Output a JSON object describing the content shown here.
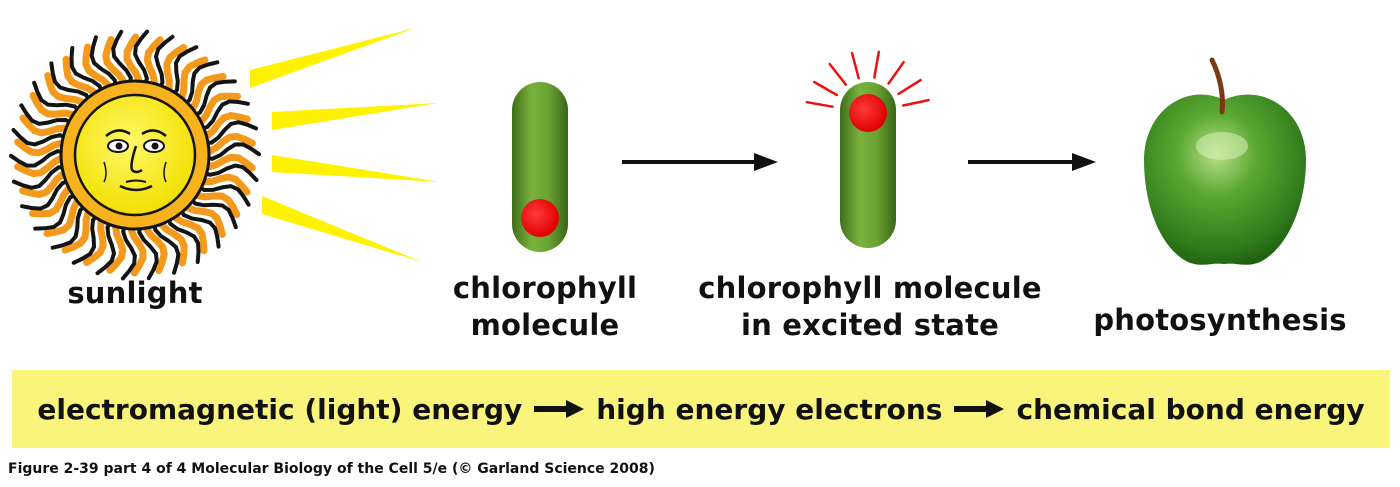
{
  "stages": {
    "sunlight": "sunlight",
    "chlorophyll_line1": "chlorophyll",
    "chlorophyll_line2": "molecule",
    "excited_line1": "chlorophyll molecule",
    "excited_line2": "in excited state",
    "photosynthesis": "photosynthesis"
  },
  "energy_band": {
    "step1": "electromagnetic (light) energy",
    "step2": "high energy electrons",
    "step3": "chemical bond energy",
    "background": "#f8f47c"
  },
  "caption": "Figure 2-39 part 4 of 4  Molecular Biology of the Cell 5/e (© Garland Science 2008)",
  "colors": {
    "molecule_green": "#6fa434",
    "electron_red": "#ee1111",
    "ray_yellow": "#fff200",
    "apple_green": "#4a9a2a"
  },
  "icons": [
    "sun-icon",
    "chlorophyll-molecule-icon",
    "excited-chlorophyll-icon",
    "apple-icon",
    "arrow-icon"
  ]
}
